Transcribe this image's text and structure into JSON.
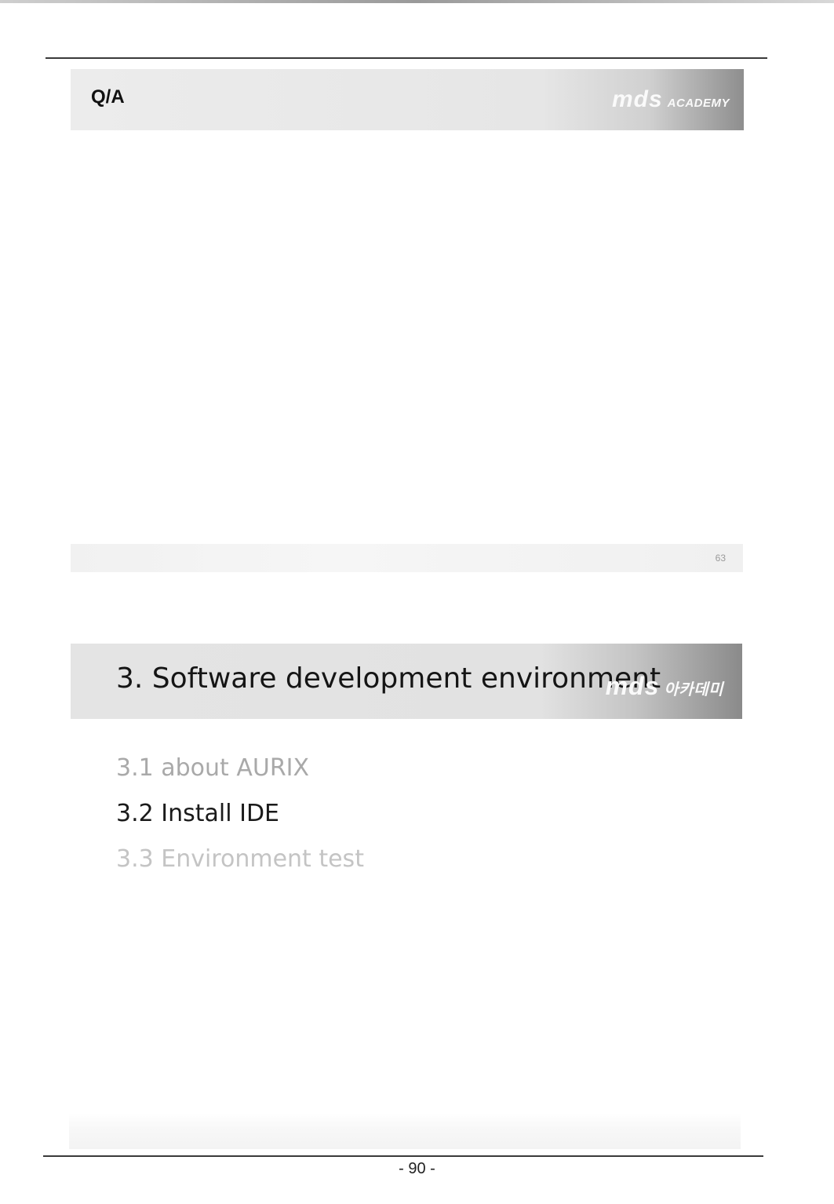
{
  "slide1": {
    "title": "Q/A",
    "logo_main": "mds",
    "logo_sub": "ACADEMY",
    "slide_number": "63"
  },
  "slide2": {
    "section_title": "3. Software development environment",
    "logo_main": "mds",
    "logo_sub": "아카데미",
    "toc": [
      {
        "label": "3.1 about AURIX",
        "state": "inactive"
      },
      {
        "label": "3.2 Install IDE",
        "state": "active"
      },
      {
        "label": "3.3 Environment test",
        "state": "inactive"
      }
    ]
  },
  "page": {
    "number": "- 90 -"
  }
}
